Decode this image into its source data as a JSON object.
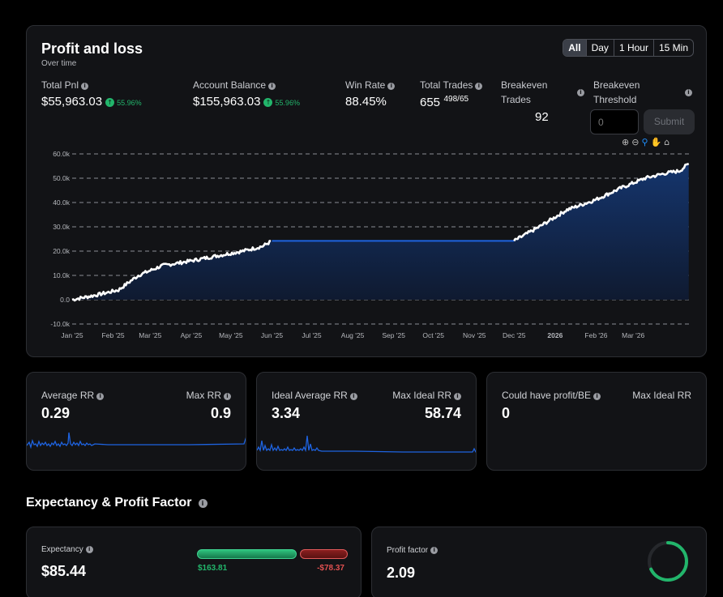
{
  "pnl": {
    "title": "Profit and loss",
    "subtitle": "Over time",
    "ranges": [
      "All",
      "Day",
      "1 Hour",
      "15 Min"
    ],
    "total_pnl_label": "Total Pnl",
    "total_pnl_value": "$55,963.03",
    "total_pnl_pct": "55.96%",
    "balance_label": "Account Balance",
    "balance_value": "$155,963.03",
    "balance_pct": "55.96%",
    "win_rate_label": "Win Rate",
    "win_rate_value": "88.45%",
    "total_trades_label": "Total Trades",
    "total_trades_value": "655",
    "total_trades_sup": "498/65",
    "breakeven_trades_label_1": "Breakeven",
    "breakeven_trades_label_2": "Trades",
    "breakeven_trades_value": "92",
    "breakeven_threshold_label_1": "Breakeven",
    "breakeven_threshold_label_2": "Threshold",
    "threshold_placeholder": "0",
    "submit_label": "Submit"
  },
  "chart_data": {
    "type": "area",
    "ylim": [
      -10000,
      60000
    ],
    "yticks": [
      60000,
      50000,
      40000,
      30000,
      20000,
      10000,
      0,
      -10000
    ],
    "ytick_labels": [
      "60.0k",
      "50.0k",
      "40.0k",
      "30.0k",
      "20.0k",
      "10.0k",
      "0.0",
      "-10.0k"
    ],
    "xtick_labels": [
      "Jan '25",
      "Feb '25",
      "Mar '25",
      "Apr '25",
      "May '25",
      "Jun '25",
      "Jul '25",
      "Aug '25",
      "Sep '25",
      "Oct '25",
      "Nov '25",
      "Dec '25",
      "2026",
      "Feb '26",
      "Mar '26"
    ],
    "x": [
      "2025-01-01",
      "2025-01-20",
      "2025-02-05",
      "2025-02-20",
      "2025-03-10",
      "2025-04-01",
      "2025-04-20",
      "2025-05-10",
      "2025-05-25",
      "2025-06-01",
      "2025-12-01",
      "2025-12-20",
      "2026-01-10",
      "2026-01-31",
      "2026-02-20",
      "2026-03-10",
      "2026-03-25",
      "2026-04-05",
      "2026-04-12"
    ],
    "y": [
      0,
      2000,
      4000,
      10000,
      14000,
      16000,
      18000,
      20000,
      22000,
      24200,
      24200,
      30000,
      37000,
      41000,
      46000,
      50000,
      52000,
      53000,
      55963
    ],
    "grid": true,
    "line_color": "#ffffff",
    "flat_color": "#1e63e0",
    "fill_color": "#16305e"
  },
  "stats": {
    "avg_rr_label": "Average RR",
    "avg_rr_value": "0.29",
    "max_rr_label": "Max RR",
    "max_rr_value": "0.9",
    "ideal_avg_label": "Ideal Average RR",
    "ideal_avg_value": "3.34",
    "max_ideal_label": "Max Ideal RR",
    "max_ideal_value": "58.74",
    "could_label": "Could have profit/BE",
    "could_value": "0",
    "max_ideal_label_2": "Max Ideal RR"
  },
  "expectancy": {
    "section_title": "Expectancy & Profit Factor",
    "expectancy_label": "Expectancy",
    "expectancy_value": "$85.44",
    "win_amount": "$163.81",
    "loss_amount": "-$78.37",
    "win_ratio": 0.677,
    "profit_factor_label": "Profit factor",
    "profit_factor_value": "2.09",
    "profit_factor_ring_fraction": 0.68
  },
  "colors": {
    "green": "#22b56b",
    "red": "#d63a3a",
    "blue": "#1e63e0",
    "card": "#121316"
  },
  "icons": [
    "info-icon",
    "arrow-up-icon",
    "zoom-in-icon",
    "zoom-out-icon",
    "zoom-select-icon",
    "pan-hand-icon",
    "home-icon"
  ]
}
